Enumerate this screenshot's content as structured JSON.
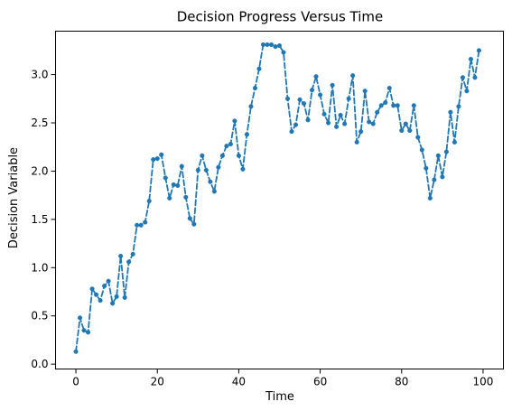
{
  "chart_data": {
    "type": "line",
    "title": "Decision Progress Versus Time",
    "xlabel": "Time",
    "ylabel": "Decision Variable",
    "xlim": [
      -5,
      105
    ],
    "ylim": [
      -0.05,
      3.45
    ],
    "x_ticks": [
      0,
      20,
      40,
      60,
      80,
      100
    ],
    "x_tick_labels": [
      "0",
      "20",
      "40",
      "60",
      "80",
      "100"
    ],
    "y_ticks": [
      0.0,
      0.5,
      1.0,
      1.5,
      2.0,
      2.5,
      3.0
    ],
    "y_tick_labels": [
      "0.0",
      "0.5",
      "1.0",
      "1.5",
      "2.0",
      "2.5",
      "3.0"
    ],
    "grid": false,
    "colors": {
      "series": "#1f77b4",
      "axis": "#000000"
    },
    "series": [
      {
        "x": [
          0,
          1,
          2,
          3,
          4,
          5,
          6,
          7,
          8,
          9,
          10,
          11,
          12,
          13,
          14,
          15,
          16,
          17,
          18,
          19,
          20,
          21,
          22,
          23,
          24,
          25,
          26,
          27,
          28,
          29,
          30,
          31,
          32,
          33,
          34,
          35,
          36,
          37,
          38,
          39,
          40,
          41,
          42,
          43,
          44,
          45,
          46,
          47,
          48,
          49,
          50,
          51,
          52,
          53,
          54,
          55,
          56,
          57,
          58,
          59,
          60,
          61,
          62,
          63,
          64,
          65,
          66,
          67,
          68,
          69,
          70,
          71,
          72,
          73,
          74,
          75,
          76,
          77,
          78,
          79,
          80,
          81,
          82,
          83,
          84,
          85,
          86,
          87,
          88,
          89,
          90,
          91,
          92,
          93,
          94,
          95,
          96,
          97,
          98,
          99
        ],
        "values": [
          0.13,
          0.48,
          0.35,
          0.33,
          0.78,
          0.72,
          0.66,
          0.81,
          0.86,
          0.63,
          0.7,
          1.12,
          0.69,
          1.06,
          1.14,
          1.44,
          1.44,
          1.47,
          1.69,
          2.12,
          2.13,
          2.17,
          1.93,
          1.72,
          1.86,
          1.85,
          2.05,
          1.73,
          1.51,
          1.45,
          2.01,
          2.16,
          2.01,
          1.89,
          1.79,
          2.04,
          2.16,
          2.26,
          2.28,
          2.52,
          2.16,
          2.02,
          2.38,
          2.67,
          2.86,
          3.06,
          3.31,
          3.31,
          3.31,
          3.29,
          3.3,
          3.23,
          2.75,
          2.41,
          2.48,
          2.74,
          2.7,
          2.53,
          2.84,
          2.98,
          2.79,
          2.59,
          2.5,
          2.89,
          2.46,
          2.58,
          2.49,
          2.75,
          2.99,
          2.3,
          2.41,
          2.83,
          2.51,
          2.49,
          2.61,
          2.68,
          2.71,
          2.86,
          2.68,
          2.68,
          2.42,
          2.49,
          2.42,
          2.68,
          2.35,
          2.22,
          2.03,
          1.72,
          1.91,
          2.16,
          1.94,
          2.2,
          2.61,
          2.3,
          2.67,
          2.97,
          2.83,
          3.16,
          2.97,
          3.25
        ]
      }
    ]
  }
}
